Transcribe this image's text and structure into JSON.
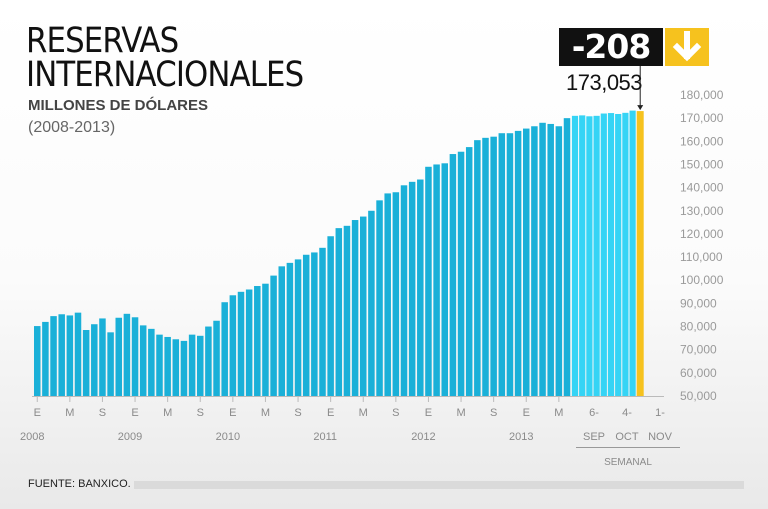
{
  "header": {
    "title_line1": "RESERVAS",
    "title_line2": "INTERNACIONALES",
    "subtitle": "MILLONES DE DÓLARES",
    "range": "(2008-2013)"
  },
  "callout": {
    "change": "-208",
    "last_value": "173,053",
    "arrow_icon": "arrow-down-icon",
    "arrow_color": "#f6c21e"
  },
  "source": "FUENTE: BANXICO.",
  "colors": {
    "monthly": "#1ab0d8",
    "weekly": "#35d4f5",
    "latest": "#f6c21e"
  },
  "chart_data": {
    "type": "bar",
    "ylim": [
      50000,
      180000
    ],
    "y_ticks": [
      "50,000",
      "60,000",
      "70,000",
      "80,000",
      "90,000",
      "100,000",
      "110,000",
      "120,000",
      "130,000",
      "140,000",
      "150,000",
      "160,000",
      "170,000",
      "180,000"
    ],
    "month_tick_labels": [
      "E",
      "M",
      "S"
    ],
    "year_labels": [
      "2008",
      "2009",
      "2010",
      "2011",
      "2012",
      "2013"
    ],
    "weekly_day_labels": [
      "6-",
      "4-",
      "1-"
    ],
    "weekly_month_labels": [
      "SEP",
      "OCT",
      "NOV"
    ],
    "weekly_group_label": "SEMANAL",
    "monthly_values": [
      80200,
      82000,
      84500,
      85300,
      84800,
      86000,
      78500,
      81000,
      83500,
      77500,
      83800,
      85500,
      84000,
      80500,
      79000,
      76500,
      75500,
      74500,
      73800,
      76500,
      76000,
      80000,
      82500,
      90500,
      93500,
      95000,
      96000,
      97500,
      98500,
      102000,
      106000,
      107500,
      109000,
      111000,
      112000,
      114000,
      119000,
      122500,
      123500,
      126000,
      127500,
      130000,
      134500,
      137500,
      138000,
      141000,
      142500,
      143500,
      149000,
      150000,
      150500,
      154500,
      155500,
      157500,
      160500,
      161500,
      162000,
      163500,
      163500,
      164500,
      165500,
      166500,
      168000,
      167500,
      166500,
      170000
    ],
    "weekly_values": [
      171000,
      171200,
      170800,
      171000,
      172000,
      172200,
      171800,
      172300,
      173261
    ],
    "latest_value": 173053
  }
}
